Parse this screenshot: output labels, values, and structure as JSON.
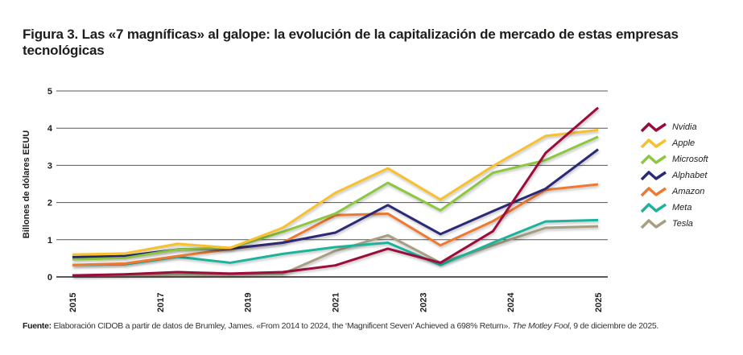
{
  "title": "Figura 3. Las «7 magníficas» al galope: la evolución de la capitalización de mercado de estas empresas tecnológicas",
  "source": {
    "label": "Fuente:",
    "text": " Elaboración CIDOB a partir de datos de Brumley, James. «From 2014 to 2024, the ‘Magnificent Seven’ Achieved a 698% Return». ",
    "publication": "The Motley Fool",
    "date": ", 9 de diciembre de 2025."
  },
  "chart_data": {
    "type": "line",
    "title": "Figura 3. Las «7 magníficas» al galope: la evolución de la capitalización de mercado de estas empresas tecnológicas",
    "ylabel": "Billones de dólares EEUU",
    "xlabel": "",
    "ylim": [
      0,
      5
    ],
    "y_ticks": [
      0,
      1,
      2,
      3,
      4,
      5
    ],
    "x_tick_labels": [
      "2015",
      "2017",
      "2019",
      "2021",
      "2023",
      "2024",
      "2025"
    ],
    "grid": "horizontal",
    "legend": "right",
    "series": [
      {
        "name": "Nvidia",
        "color": "#9b0a3b",
        "values": [
          0.04,
          0.07,
          0.13,
          0.09,
          0.13,
          0.31,
          0.76,
          0.38,
          1.23,
          3.33,
          4.55
        ]
      },
      {
        "name": "Apple",
        "color": "#f6c02d",
        "values": [
          0.6,
          0.63,
          0.89,
          0.78,
          1.32,
          2.26,
          2.92,
          2.08,
          2.98,
          3.79,
          3.95
        ]
      },
      {
        "name": "Microsoft",
        "color": "#8dc63f",
        "values": [
          0.47,
          0.51,
          0.74,
          0.78,
          1.21,
          1.7,
          2.53,
          1.79,
          2.8,
          3.14,
          3.77
        ]
      },
      {
        "name": "Alphabet",
        "color": "#2b2a74",
        "values": [
          0.53,
          0.56,
          0.74,
          0.76,
          0.92,
          1.19,
          1.93,
          1.15,
          1.77,
          2.37,
          3.43
        ]
      },
      {
        "name": "Amazon",
        "color": "#ee7a31",
        "values": [
          0.32,
          0.36,
          0.56,
          0.75,
          0.92,
          1.66,
          1.7,
          0.85,
          1.5,
          2.34,
          2.49
        ]
      },
      {
        "name": "Meta",
        "color": "#1db39b",
        "values": [
          0.32,
          0.34,
          0.54,
          0.38,
          0.62,
          0.8,
          0.92,
          0.32,
          0.92,
          1.49,
          1.53
        ]
      },
      {
        "name": "Tesla",
        "color": "#a79f82",
        "values": [
          0.04,
          0.05,
          0.06,
          0.06,
          0.08,
          0.7,
          1.12,
          0.38,
          0.85,
          1.32,
          1.36
        ]
      }
    ]
  }
}
